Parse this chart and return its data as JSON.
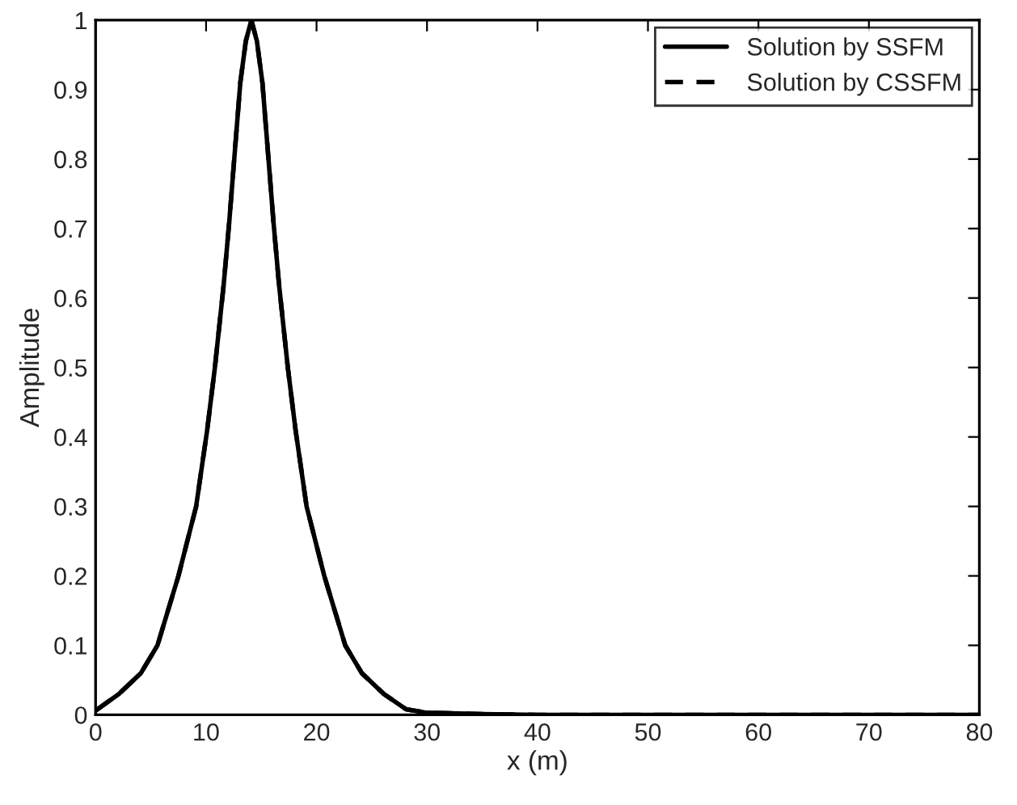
{
  "chart_data": {
    "type": "line",
    "xlabel": "x (m)",
    "ylabel": "Amplitude",
    "xlim": [
      0,
      80
    ],
    "xticks": [
      0,
      10,
      20,
      30,
      40,
      50,
      60,
      70,
      80
    ],
    "ylim": [
      0,
      1
    ],
    "yticks": [
      0,
      0.1,
      0.2,
      0.3,
      0.4,
      0.5,
      0.6,
      0.7,
      0.8,
      0.9,
      1
    ],
    "grid": false,
    "legend": "top right",
    "series": [
      {
        "name": "Solution by SSFM",
        "color": "#000000",
        "line_style": "solid",
        "x": [
          0,
          2.1,
          4.1,
          5.6,
          7.5,
          9.1,
          10.1,
          10.8,
          11.6,
          12.1,
          12.55,
          13.1,
          13.6,
          14.1,
          14.6,
          15.1,
          15.65,
          16.1,
          16.6,
          17.4,
          18.1,
          19.1,
          20.7,
          22.6,
          24.1,
          26.1,
          28.1,
          30,
          35,
          40,
          50,
          60,
          70,
          80
        ],
        "values": [
          0.006,
          0.03,
          0.06,
          0.1,
          0.2,
          0.3,
          0.41,
          0.5,
          0.62,
          0.71,
          0.8,
          0.91,
          0.97,
          1,
          0.97,
          0.91,
          0.8,
          0.71,
          0.62,
          0.5,
          0.41,
          0.3,
          0.2,
          0.1,
          0.06,
          0.03,
          0.008,
          0.003,
          0.001,
          0,
          0,
          0,
          0,
          0
        ]
      },
      {
        "name": "Solution by CSSFM",
        "color": "#000000",
        "line_style": "dashed",
        "x": [
          0,
          2.1,
          4.1,
          5.6,
          7.5,
          9.1,
          10.1,
          10.8,
          11.6,
          12.1,
          12.55,
          13.1,
          13.6,
          14.1,
          14.6,
          15.1,
          15.65,
          16.1,
          16.6,
          17.4,
          18.1,
          19.1,
          20.7,
          22.6,
          24.1,
          26.1,
          28.1,
          30,
          35,
          40,
          50,
          60,
          70,
          80
        ],
        "values": [
          0.006,
          0.03,
          0.06,
          0.1,
          0.2,
          0.3,
          0.41,
          0.5,
          0.62,
          0.71,
          0.8,
          0.91,
          0.97,
          1,
          0.97,
          0.91,
          0.8,
          0.71,
          0.62,
          0.5,
          0.41,
          0.3,
          0.2,
          0.1,
          0.06,
          0.03,
          0.008,
          0.003,
          0.001,
          0,
          0,
          0,
          0,
          0
        ]
      }
    ]
  }
}
